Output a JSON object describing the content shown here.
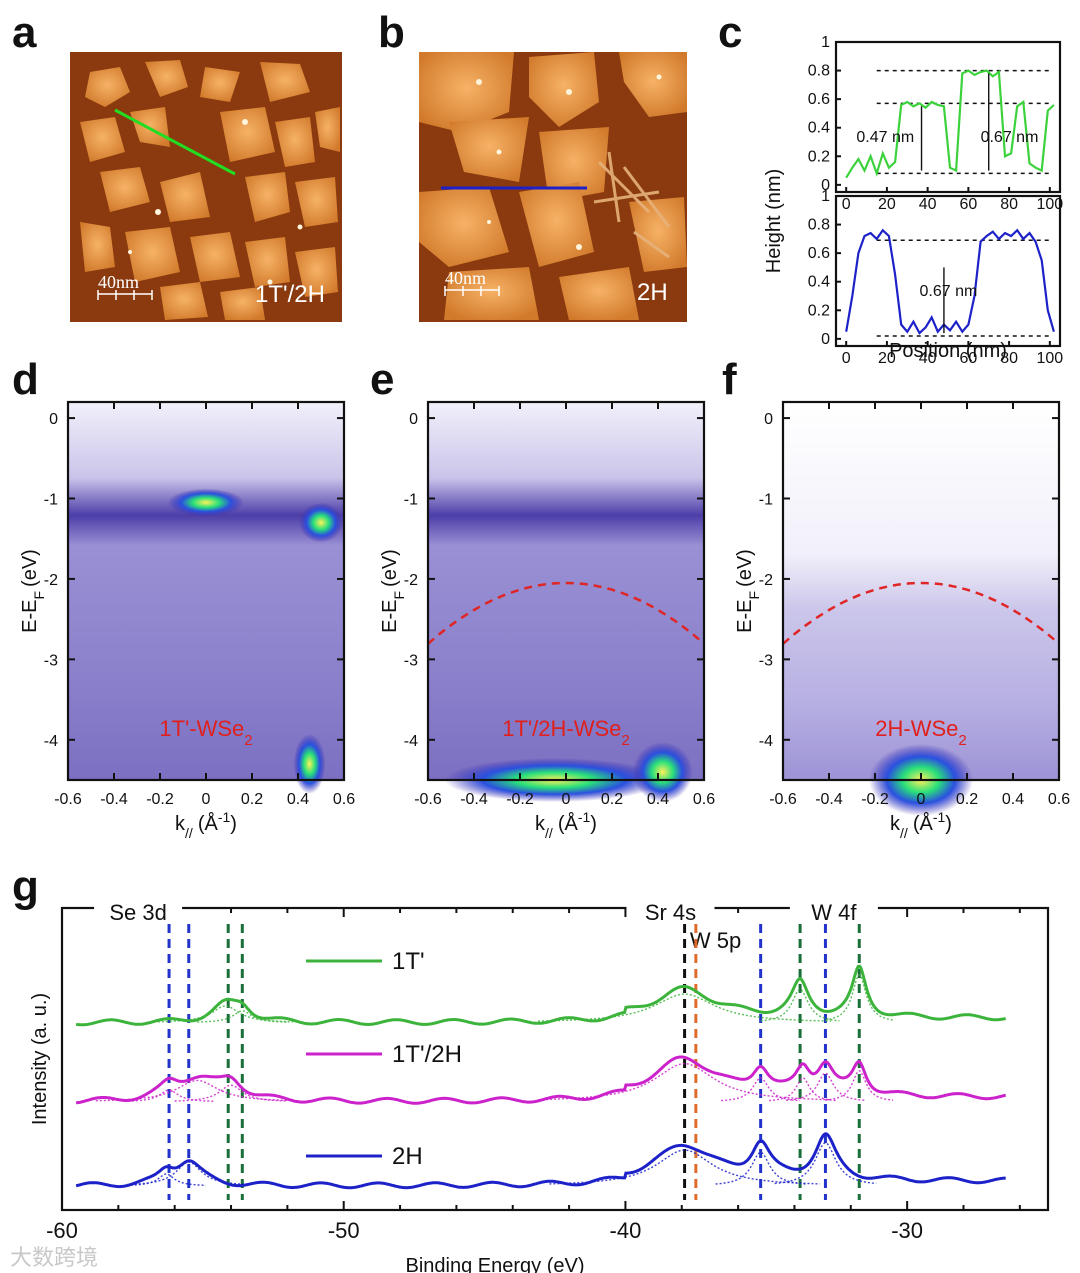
{
  "panels": {
    "a": {
      "label": "a",
      "scale": "40nm",
      "phase": "1T'/2H"
    },
    "b": {
      "label": "b",
      "scale": "40nm",
      "phase": "2H"
    },
    "c": {
      "label": "c"
    },
    "d": {
      "label": "d",
      "phase_main": "1T'-WSe",
      "phase_sub": "2"
    },
    "e": {
      "label": "e",
      "phase_main": "1T'/2H-WSe",
      "phase_sub": "2"
    },
    "f": {
      "label": "f",
      "phase_main": "2H-WSe",
      "phase_sub": "2"
    },
    "g": {
      "label": "g"
    }
  },
  "arpes_axes": {
    "ylabel_main": "E-E",
    "ylabel_sub": "F",
    "ylabel_unit": "(eV)",
    "xlabel_main": "k",
    "xlabel_sub": "//",
    "xlabel_unit": "(Å",
    "xlabel_exp": "-1",
    "xlabel_close": ")",
    "xticks": [
      "-0.6",
      "-0.4",
      "-0.2",
      "0",
      "0.2",
      "0.4",
      "0.6"
    ],
    "yticks": [
      "0",
      "-1",
      "-2",
      "-3",
      "-4"
    ]
  },
  "chart_data": [
    {
      "type": "line",
      "id": "c-top",
      "color": "#3cd23c",
      "xlabel": "Position (nm)",
      "ylabel": "Height (nm)",
      "xlim": [
        -5,
        105
      ],
      "ylim": [
        -0.05,
        1.0
      ],
      "xticks": [
        "0",
        "20",
        "40",
        "60",
        "80",
        "100"
      ],
      "yticks": [
        "0",
        "0.2",
        "0.4",
        "0.6",
        "0.8",
        "1"
      ],
      "x": [
        0,
        3,
        6,
        9,
        12,
        15,
        18,
        21,
        24,
        27,
        30,
        33,
        36,
        39,
        42,
        45,
        48,
        51,
        54,
        57,
        60,
        63,
        66,
        69,
        72,
        75,
        78,
        81,
        84,
        87,
        90,
        93,
        96,
        99,
        102
      ],
      "y": [
        0.05,
        0.12,
        0.18,
        0.1,
        0.2,
        0.08,
        0.22,
        0.12,
        0.16,
        0.56,
        0.58,
        0.55,
        0.57,
        0.54,
        0.58,
        0.56,
        0.55,
        0.12,
        0.1,
        0.78,
        0.8,
        0.77,
        0.79,
        0.8,
        0.76,
        0.79,
        0.2,
        0.22,
        0.55,
        0.58,
        0.15,
        0.12,
        0.1,
        0.52,
        0.56
      ],
      "annotations": [
        "0.47 nm",
        "0.67 nm"
      ],
      "ref_levels": [
        0.08,
        0.57,
        0.8
      ]
    },
    {
      "type": "line",
      "id": "c-bottom",
      "color": "#1c22c8",
      "xlabel": "Position (nm)",
      "ylabel": "Height (nm)",
      "xlim": [
        -5,
        105
      ],
      "ylim": [
        -0.05,
        1.0
      ],
      "xticks": [
        "0",
        "20",
        "40",
        "60",
        "80",
        "100"
      ],
      "yticks": [
        "0",
        "0.2",
        "0.4",
        "0.6",
        "0.8",
        "1"
      ],
      "x": [
        0,
        3,
        6,
        9,
        12,
        15,
        18,
        21,
        24,
        27,
        30,
        33,
        36,
        39,
        42,
        45,
        48,
        51,
        54,
        57,
        60,
        63,
        66,
        69,
        72,
        75,
        78,
        81,
        84,
        87,
        90,
        93,
        96,
        99,
        102
      ],
      "y": [
        0.05,
        0.3,
        0.6,
        0.72,
        0.74,
        0.7,
        0.76,
        0.72,
        0.45,
        0.1,
        0.05,
        0.12,
        0.04,
        0.08,
        0.15,
        0.05,
        0.1,
        0.06,
        0.12,
        0.05,
        0.1,
        0.3,
        0.68,
        0.72,
        0.75,
        0.7,
        0.74,
        0.72,
        0.76,
        0.7,
        0.74,
        0.68,
        0.55,
        0.2,
        0.05
      ],
      "annotations": [
        "0.67 nm"
      ],
      "ref_levels": [
        0.02,
        0.69
      ]
    },
    {
      "type": "line",
      "id": "g",
      "title": "",
      "xlabel": "Binding Energy (eV)",
      "ylabel": "Intensity (a. u.)",
      "xlim": [
        -60,
        -25
      ],
      "xticks": [
        "-60",
        "-50",
        "-40",
        "-30"
      ],
      "peak_labels": [
        "Se 3d",
        "Sr 4s",
        "W 5p",
        "W 4f"
      ],
      "legend": [
        "1T'",
        "1T'/2H",
        "2H"
      ],
      "series": [
        {
          "name": "1T'",
          "color": "#3cb43c",
          "offset": 0.78,
          "peaks": [
            [
              -54.2,
              0.07,
              0.6
            ],
            [
              -53.6,
              0.05,
              0.4
            ],
            [
              -37.9,
              0.12,
              1.3
            ],
            [
              -33.8,
              0.14,
              0.35
            ],
            [
              -31.7,
              0.2,
              0.3
            ]
          ]
        },
        {
          "name": "1T'/2H",
          "color": "#cc22cc",
          "offset": 0.45,
          "peaks": [
            [
              -56.2,
              0.05,
              0.4
            ],
            [
              -55.2,
              0.09,
              0.9
            ],
            [
              -54.0,
              0.07,
              0.5
            ],
            [
              -37.9,
              0.16,
              1.3
            ],
            [
              -35.2,
              0.1,
              0.35
            ],
            [
              -33.7,
              0.1,
              0.3
            ],
            [
              -32.9,
              0.12,
              0.35
            ],
            [
              -31.7,
              0.13,
              0.3
            ]
          ]
        },
        {
          "name": "2H",
          "color": "#1c22c8",
          "offset": 0.1,
          "peaks": [
            [
              -56.3,
              0.05,
              0.35
            ],
            [
              -55.5,
              0.1,
              0.55
            ],
            [
              -37.9,
              0.15,
              1.2
            ],
            [
              -35.2,
              0.14,
              0.4
            ],
            [
              -32.9,
              0.18,
              0.45
            ]
          ]
        }
      ],
      "vlines": [
        {
          "x": -56.2,
          "color": "#2233cc"
        },
        {
          "x": -55.5,
          "color": "#2233cc"
        },
        {
          "x": -54.1,
          "color": "#1a6e3a"
        },
        {
          "x": -53.6,
          "color": "#1a6e3a"
        },
        {
          "x": -37.9,
          "color": "#111111"
        },
        {
          "x": -37.5,
          "color": "#e06a2a"
        },
        {
          "x": -35.2,
          "color": "#2233cc"
        },
        {
          "x": -33.8,
          "color": "#1a6e3a"
        },
        {
          "x": -32.9,
          "color": "#2233cc"
        },
        {
          "x": -31.7,
          "color": "#1a6e3a"
        }
      ]
    }
  ],
  "colors": {
    "dashed_red": "#e02525",
    "phase_red": "#e0201c",
    "afm_base": "#8a3a0e",
    "afm_island": "#f0a050"
  },
  "watermark": "大数跨境"
}
